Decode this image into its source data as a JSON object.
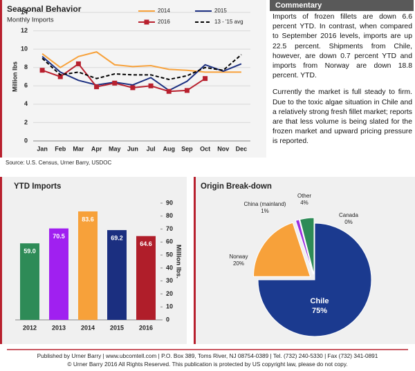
{
  "chart_data": [
    {
      "type": "line",
      "title": "Seasonal Behavior",
      "subtitle": "Monthly Imports",
      "y_label": "Million lbs",
      "categories": [
        "Jan",
        "Feb",
        "Mar",
        "Apr",
        "May",
        "Jun",
        "Jul",
        "Aug",
        "Sep",
        "Oct",
        "Nov",
        "Dec"
      ],
      "series": [
        {
          "name": "2014",
          "color": "#f7a13a",
          "values": [
            9.5,
            8.0,
            9.2,
            9.7,
            8.3,
            8.1,
            8.2,
            7.8,
            7.7,
            7.5,
            7.5,
            7.5
          ]
        },
        {
          "name": "2015",
          "color": "#1b2f80",
          "values": [
            9.2,
            7.5,
            6.6,
            6.1,
            6.4,
            6.1,
            6.9,
            5.5,
            6.5,
            8.3,
            7.6,
            8.4
          ]
        },
        {
          "name": "2016",
          "color": "#b8202e",
          "marker": "square",
          "values": [
            7.7,
            7.0,
            8.4,
            5.9,
            6.3,
            5.8,
            6.0,
            5.4,
            5.5,
            6.8,
            null,
            null
          ]
        },
        {
          "name": "13 - '15 avg",
          "color": "#000000",
          "dash": true,
          "values": [
            9.0,
            7.2,
            7.5,
            6.8,
            7.3,
            7.2,
            7.2,
            6.7,
            7.1,
            8.0,
            7.7,
            9.4
          ]
        }
      ],
      "ylim": [
        0,
        14
      ],
      "yticks": [
        0,
        2,
        4,
        6,
        8,
        10,
        12,
        14
      ],
      "grid": true
    },
    {
      "type": "bar",
      "title": "YTD Imports",
      "y_label": "Million lbs.",
      "y_axis_side": "right",
      "categories": [
        "2012",
        "2013",
        "2014",
        "2015",
        "2016"
      ],
      "values": [
        59.0,
        70.5,
        83.6,
        69.2,
        64.6
      ],
      "value_labels": [
        "59.0",
        "70.5",
        "83.6",
        "69.2",
        "64.6"
      ],
      "colors": [
        "#2e8b57",
        "#a020f0",
        "#f7a13a",
        "#1b2f80",
        "#b01e2a"
      ],
      "ylim": [
        0,
        90
      ],
      "yticks": [
        0,
        10,
        20,
        30,
        40,
        50,
        60,
        70,
        80,
        90
      ]
    },
    {
      "type": "pie",
      "title": "Origin Break-down",
      "categories": [
        "Chile",
        "Norway",
        "China (mainland)",
        "Other",
        "Canada"
      ],
      "values": [
        75,
        20,
        1,
        4,
        0
      ],
      "value_labels": [
        "75%",
        "20%",
        "1%",
        "4%",
        "0%"
      ],
      "colors": [
        "#1b3a8f",
        "#f7a13a",
        "#9b30e0",
        "#2e8b57",
        "#c0392b"
      ]
    }
  ],
  "source": "Source: U.S. Census, Urner Barry, USDOC",
  "commentary": {
    "title": "Commentary",
    "paragraphs": [
      "Imports of frozen fillets are down 6.6 percent YTD. In contrast, when compared to September 2016 levels, imports are up 22.5 percent. Shipments from Chile, however, are down 0.7 percent YTD and imports from Norway are down 18.8 percent. YTD.",
      "Currently the market is full steady to firm. Due to the toxic algae situation in Chile and a relatively strong fresh fillet market; reports are that less volume is being slated for the frozen market and upward pricing pressure is reported."
    ]
  },
  "footer": [
    "Published by Urner Barry  |  www.ubcomtell.com  |  P.O. Box 389, Toms River, NJ 08754-0389  |  Tel. (732) 240-5330  |  Fax (732) 341-0891",
    "© Urner Barry 2016 All Rights Reserved. This publication is protected by US copyright law, please do not copy."
  ]
}
